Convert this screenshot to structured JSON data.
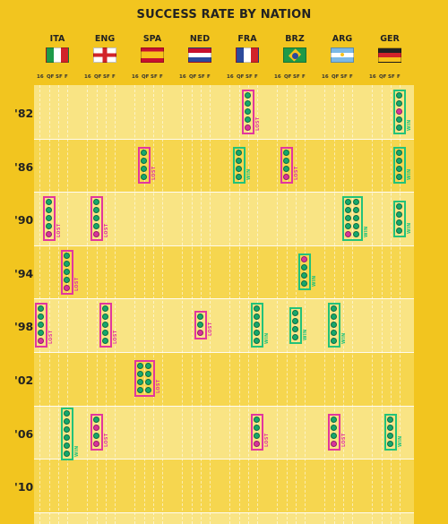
{
  "chart_data": {
    "type": "table",
    "title": "SUCCESS RATE BY NATION",
    "stages": [
      "16",
      "QF",
      "SF",
      "F"
    ],
    "nations": [
      {
        "code": "ITA",
        "flag": "italy-flag"
      },
      {
        "code": "ENG",
        "flag": "england-flag"
      },
      {
        "code": "SPA",
        "flag": "spain-flag"
      },
      {
        "code": "NED",
        "flag": "netherlands-flag"
      },
      {
        "code": "FRA",
        "flag": "france-flag"
      },
      {
        "code": "BRZ",
        "flag": "brazil-flag"
      },
      {
        "code": "ARG",
        "flag": "argentina-flag"
      },
      {
        "code": "GER",
        "flag": "germany-flag"
      }
    ],
    "years": [
      "'82",
      "'86",
      "'90",
      "'94",
      "'98",
      "'02",
      "'06",
      "'10"
    ],
    "outcome_labels": {
      "lost": "LOST",
      "win": "WIN"
    },
    "colors": {
      "background": "#f2c51f",
      "lost": "#e2369e",
      "win": "#22c27a"
    },
    "results": [
      {
        "year": "'82",
        "nation": "FRA",
        "stage": "SF",
        "outcome": "lost",
        "matches": [
          "w",
          "w",
          "w",
          "w",
          "l"
        ]
      },
      {
        "year": "'82",
        "nation": "GER",
        "stage": "F",
        "outcome": "win",
        "matches": [
          "w",
          "w",
          "l",
          "w",
          "w"
        ]
      },
      {
        "year": "'86",
        "nation": "SPA",
        "stage": "QF",
        "outcome": "lost",
        "matches": [
          "w",
          "w",
          "w",
          "w"
        ]
      },
      {
        "year": "'86",
        "nation": "FRA",
        "stage": "QF",
        "outcome": "win",
        "matches": [
          "w",
          "w",
          "w",
          "w"
        ]
      },
      {
        "year": "'86",
        "nation": "BRZ",
        "stage": "QF",
        "outcome": "lost",
        "matches": [
          "w",
          "w",
          "w",
          "l"
        ]
      },
      {
        "year": "'86",
        "nation": "GER",
        "stage": "F",
        "outcome": "win",
        "matches": [
          "w",
          "w",
          "w",
          "w"
        ]
      },
      {
        "year": "'90",
        "nation": "ITA",
        "stage": "QF",
        "outcome": "lost",
        "matches": [
          "w",
          "w",
          "w",
          "w",
          "l"
        ]
      },
      {
        "year": "'90",
        "nation": "ENG",
        "stage": "QF",
        "outcome": "lost",
        "matches": [
          "w",
          "w",
          "w",
          "w",
          "l"
        ]
      },
      {
        "year": "'90",
        "nation": "ARG",
        "stage": "F",
        "outcome": "win",
        "matches": [
          "w",
          "w",
          "w",
          "w",
          "l",
          "w",
          "w",
          "w",
          "w",
          "w"
        ]
      },
      {
        "year": "'90",
        "nation": "GER",
        "stage": "F",
        "outcome": "win",
        "matches": [
          "w",
          "w",
          "w",
          "w"
        ]
      },
      {
        "year": "'94",
        "nation": "ITA",
        "stage": "F",
        "outcome": "lost",
        "matches": [
          "w",
          "w",
          "w",
          "w",
          "l"
        ]
      },
      {
        "year": "'94",
        "nation": "BRZ",
        "stage": "F",
        "outcome": "win",
        "matches": [
          "l",
          "w",
          "w",
          "w"
        ]
      },
      {
        "year": "'98",
        "nation": "ITA",
        "stage": "16",
        "outcome": "lost",
        "matches": [
          "w",
          "w",
          "w",
          "w",
          "l"
        ]
      },
      {
        "year": "'98",
        "nation": "ENG",
        "stage": "SF",
        "outcome": "lost",
        "matches": [
          "w",
          "w",
          "w",
          "w",
          "w"
        ]
      },
      {
        "year": "'98",
        "nation": "NED",
        "stage": "SF",
        "outcome": "lost",
        "matches": [
          "w",
          "w",
          "l"
        ]
      },
      {
        "year": "'98",
        "nation": "FRA",
        "stage": "F",
        "outcome": "win",
        "matches": [
          "w",
          "w",
          "w",
          "w",
          "w"
        ]
      },
      {
        "year": "'98",
        "nation": "BRZ",
        "stage": "SF",
        "outcome": "win",
        "matches": [
          "w",
          "w",
          "w",
          "w"
        ]
      },
      {
        "year": "'98",
        "nation": "ARG",
        "stage": "QF",
        "outcome": "win",
        "matches": [
          "w",
          "w",
          "w",
          "w",
          "w"
        ]
      },
      {
        "year": "'02",
        "nation": "SPA",
        "stage": "QF",
        "outcome": "lost",
        "matches": [
          "w",
          "w",
          "w",
          "w",
          "w",
          "w",
          "w",
          "w"
        ]
      },
      {
        "year": "'06",
        "nation": "ITA",
        "stage": "F",
        "outcome": "win",
        "matches": [
          "w",
          "w",
          "w",
          "w",
          "w",
          "w"
        ]
      },
      {
        "year": "'06",
        "nation": "ENG",
        "stage": "QF",
        "outcome": "lost",
        "matches": [
          "w",
          "l",
          "w",
          "l"
        ]
      },
      {
        "year": "'06",
        "nation": "FRA",
        "stage": "F",
        "outcome": "lost",
        "matches": [
          "w",
          "w",
          "w",
          "l"
        ]
      },
      {
        "year": "'06",
        "nation": "ARG",
        "stage": "QF",
        "outcome": "lost",
        "matches": [
          "w",
          "w",
          "w",
          "l"
        ]
      },
      {
        "year": "'06",
        "nation": "GER",
        "stage": "SF",
        "outcome": "win",
        "matches": [
          "w",
          "w",
          "w",
          "w"
        ]
      }
    ]
  }
}
